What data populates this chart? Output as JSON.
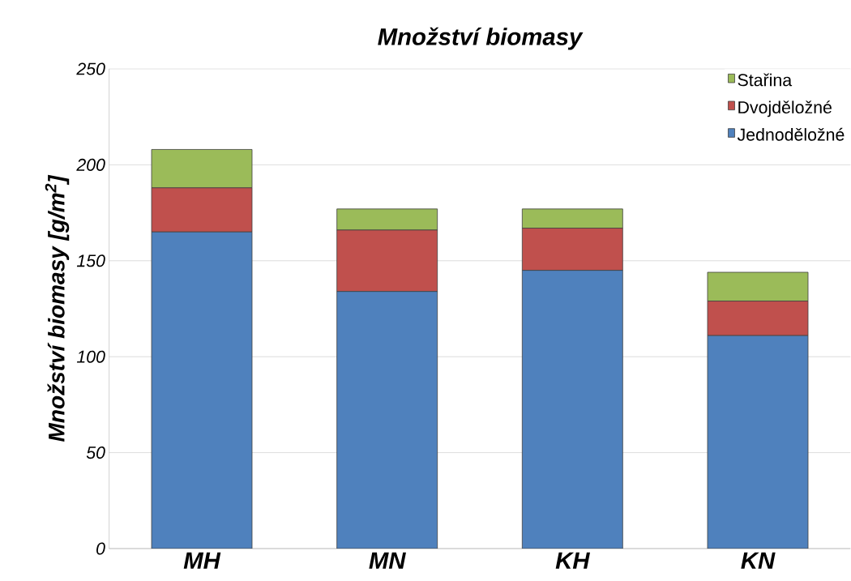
{
  "chart_data": {
    "type": "bar",
    "title": "Množství biomasy",
    "ylabel": "Množství biomasy [g/m$^{2}$]",
    "categories": [
      "MH",
      "MN",
      "KH",
      "KN"
    ],
    "stacked": true,
    "series": [
      {
        "name": "Jednoděložné",
        "color": "#4f81bd",
        "values": [
          165,
          134,
          145,
          111
        ]
      },
      {
        "name": "Dvojděložné",
        "color": "#c0504d",
        "values": [
          23,
          32,
          22,
          18
        ]
      },
      {
        "name": "Stařina",
        "color": "#9bbb59",
        "values": [
          20,
          11,
          10,
          15
        ]
      }
    ],
    "ylim": [
      0,
      250
    ],
    "yticks": [
      0,
      50,
      100,
      150,
      200,
      250
    ],
    "grid": "y",
    "legend": "top right"
  }
}
